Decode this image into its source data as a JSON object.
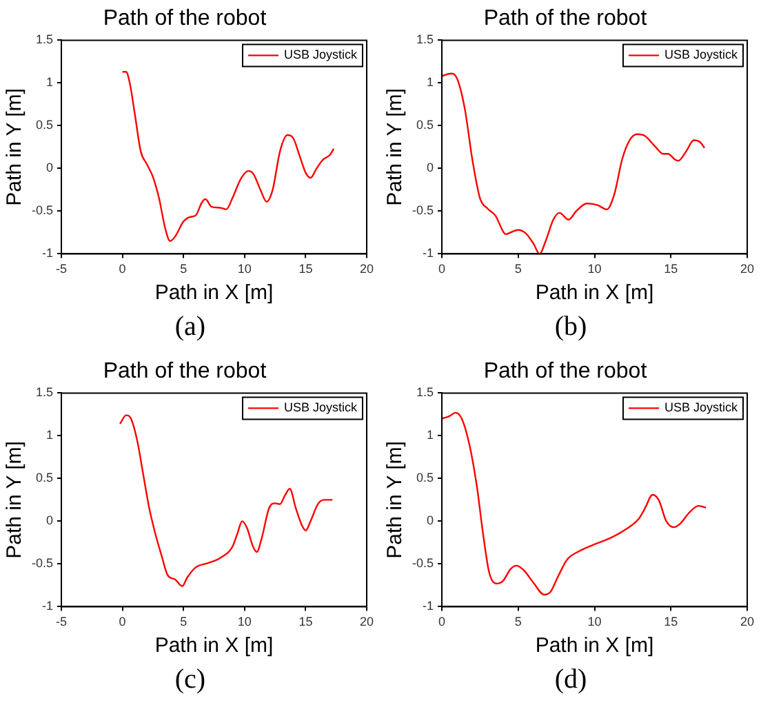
{
  "chart_data": [
    {
      "type": "line",
      "title": "Path of the robot",
      "xlabel": "Path in X [m]",
      "ylabel": "Path in Y [m]",
      "annotations": [
        "(a)"
      ],
      "xlim": [
        -5,
        20
      ],
      "xticks": [
        -5,
        0,
        5,
        10,
        15,
        20
      ],
      "ylim": [
        -1,
        1.5
      ],
      "yticks": [
        -1,
        -0.5,
        0,
        0.5,
        1,
        1.5
      ],
      "grid": false,
      "legend": "top right",
      "marker": "none",
      "line_style": "solid",
      "series": [
        {
          "name": "USB Joystick",
          "color": "#ff0000",
          "x": [
            0,
            0.3,
            0.6,
            1,
            1.5,
            2,
            2.5,
            3,
            3.5,
            3.9,
            4.3,
            5,
            5.5,
            6,
            6.5,
            6.8,
            7.3,
            8,
            8.5,
            9,
            9.7,
            10.3,
            10.7,
            11.3,
            11.8,
            12.3,
            12.9,
            13.5,
            14,
            14.5,
            15,
            15.4,
            15.9,
            16.4,
            17,
            17.3
          ],
          "values": [
            1.13,
            1.13,
            1.0,
            0.65,
            0.2,
            0.05,
            -0.1,
            -0.35,
            -0.7,
            -0.85,
            -0.8,
            -0.62,
            -0.57,
            -0.55,
            -0.4,
            -0.36,
            -0.45,
            -0.46,
            -0.48,
            -0.35,
            -0.12,
            -0.03,
            -0.06,
            -0.25,
            -0.39,
            -0.25,
            0.2,
            0.39,
            0.35,
            0.15,
            -0.05,
            -0.11,
            0.0,
            0.1,
            0.16,
            0.23
          ]
        }
      ]
    },
    {
      "type": "line",
      "title": "Path of the robot",
      "xlabel": "Path in X [m]",
      "ylabel": "Path in Y [m]",
      "annotations": [
        "(b)"
      ],
      "xlim": [
        0,
        20
      ],
      "xticks": [
        0,
        5,
        10,
        15,
        20
      ],
      "ylim": [
        -1,
        1.5
      ],
      "yticks": [
        -1,
        -0.5,
        0,
        0.5,
        1,
        1.5
      ],
      "grid": false,
      "legend": "top right",
      "marker": "none",
      "line_style": "solid",
      "series": [
        {
          "name": "USB Joystick",
          "color": "#ff0000",
          "x": [
            0,
            0.6,
            1,
            1.5,
            2,
            2.5,
            3,
            3.5,
            4.2,
            4.5,
            5,
            5.5,
            6,
            6.4,
            6.8,
            7.3,
            7.7,
            8.3,
            8.8,
            9.5,
            10.2,
            10.8,
            11.3,
            11.8,
            12.3,
            12.8,
            13.3,
            14,
            14.5,
            14.8,
            15.3,
            15.5,
            16,
            16.5,
            16.9,
            17.2
          ],
          "values": [
            1.08,
            1.11,
            1.05,
            0.7,
            0.1,
            -0.35,
            -0.47,
            -0.55,
            -0.77,
            -0.75,
            -0.72,
            -0.76,
            -0.88,
            -1.0,
            -0.85,
            -0.6,
            -0.52,
            -0.6,
            -0.5,
            -0.41,
            -0.43,
            -0.48,
            -0.3,
            0.1,
            0.33,
            0.4,
            0.38,
            0.25,
            0.17,
            0.17,
            0.1,
            0.09,
            0.2,
            0.33,
            0.31,
            0.24
          ]
        }
      ]
    },
    {
      "type": "line",
      "title": "Path of the robot",
      "xlabel": "Path in X [m]",
      "ylabel": "Path in Y [m]",
      "annotations": [
        "(c)"
      ],
      "xlim": [
        -5,
        20
      ],
      "xticks": [
        -5,
        0,
        5,
        10,
        15,
        20
      ],
      "ylim": [
        -1,
        1.5
      ],
      "yticks": [
        -1,
        -0.5,
        0,
        0.5,
        1,
        1.5
      ],
      "grid": false,
      "legend": "top right",
      "marker": "none",
      "line_style": "solid",
      "series": [
        {
          "name": "USB Joystick",
          "color": "#ff0000",
          "x": [
            -0.2,
            0.3,
            0.7,
            1.2,
            1.7,
            2.2,
            2.7,
            3.2,
            3.7,
            4.3,
            4.9,
            5.3,
            6,
            7,
            8,
            9,
            9.4,
            9.8,
            10.2,
            10.7,
            11,
            11.4,
            12,
            12.5,
            12.9,
            13.3,
            13.7,
            14.2,
            14.7,
            15,
            15.4,
            16,
            16.5,
            17.2
          ],
          "values": [
            1.14,
            1.24,
            1.2,
            0.95,
            0.55,
            0.15,
            -0.15,
            -0.4,
            -0.63,
            -0.68,
            -0.76,
            -0.66,
            -0.54,
            -0.49,
            -0.43,
            -0.3,
            -0.15,
            0.0,
            -0.08,
            -0.3,
            -0.36,
            -0.2,
            0.15,
            0.21,
            0.2,
            0.3,
            0.38,
            0.15,
            -0.05,
            -0.11,
            0.0,
            0.2,
            0.25,
            0.25
          ]
        }
      ]
    },
    {
      "type": "line",
      "title": "Path of the robot",
      "xlabel": "Path in X [m]",
      "ylabel": "Path in Y [m]",
      "annotations": [
        "(d)"
      ],
      "xlim": [
        0,
        20
      ],
      "xticks": [
        0,
        5,
        10,
        15,
        20
      ],
      "ylim": [
        -1,
        1.5
      ],
      "yticks": [
        -1,
        -0.5,
        0,
        0.5,
        1,
        1.5
      ],
      "grid": false,
      "legend": "top right",
      "marker": "none",
      "line_style": "solid",
      "series": [
        {
          "name": "USB Joystick",
          "color": "#ff0000",
          "x": [
            0,
            0.5,
            0.9,
            1.3,
            1.8,
            2.3,
            2.7,
            3.1,
            3.6,
            4,
            4.5,
            4.9,
            5.4,
            6,
            6.7,
            7.1,
            7.6,
            8.2,
            9,
            10,
            11,
            12,
            12.9,
            13.3,
            13.8,
            14.2,
            14.7,
            15.2,
            15.6,
            16.2,
            16.8,
            17.3
          ],
          "values": [
            1.2,
            1.23,
            1.27,
            1.2,
            0.9,
            0.4,
            -0.15,
            -0.6,
            -0.73,
            -0.7,
            -0.56,
            -0.52,
            -0.58,
            -0.72,
            -0.86,
            -0.83,
            -0.65,
            -0.45,
            -0.35,
            -0.27,
            -0.2,
            -0.1,
            0.03,
            0.15,
            0.31,
            0.25,
            0.0,
            -0.07,
            -0.03,
            0.1,
            0.18,
            0.16
          ]
        }
      ]
    }
  ]
}
